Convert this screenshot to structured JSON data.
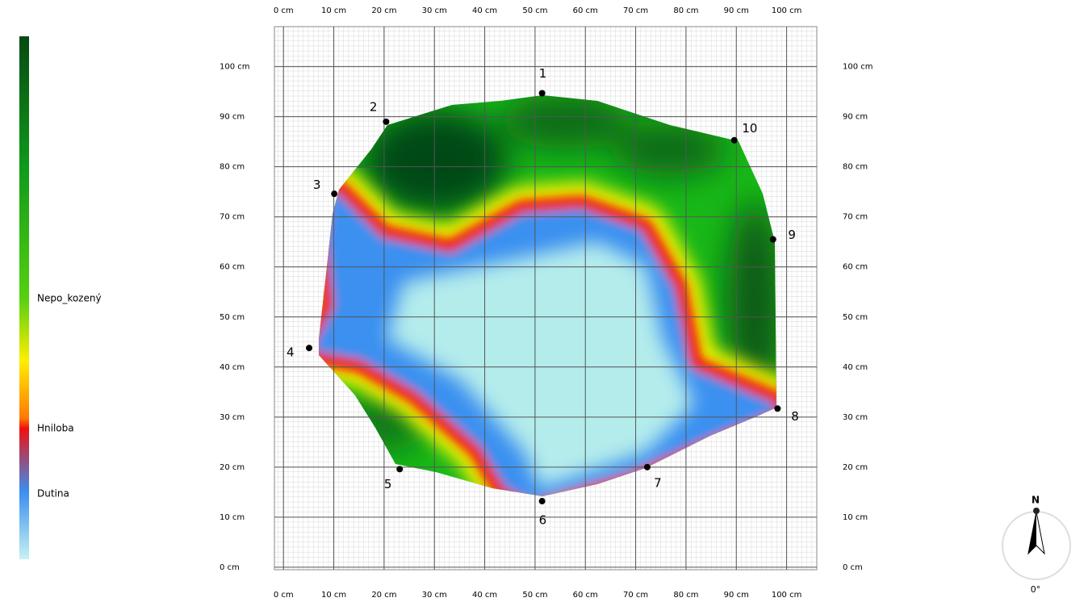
{
  "chart_data": {
    "type": "scatter",
    "x": [
      51.4,
      20.4,
      10.1,
      5.1,
      23.1,
      51.4,
      72.3,
      98.2,
      97.3,
      89.6
    ],
    "y": [
      94.7,
      89.0,
      74.6,
      43.8,
      19.6,
      13.2,
      20.0,
      31.7,
      65.5,
      85.3
    ],
    "point_labels": [
      "1",
      "2",
      "3",
      "4",
      "5",
      "6",
      "7",
      "8",
      "9",
      "10"
    ],
    "color": "#000000",
    "xlim": [
      -1.8,
      106
    ],
    "ylim": [
      -0.5,
      108
    ],
    "xticks": [
      {
        "value": 0,
        "label": "0 cm"
      },
      {
        "value": 10,
        "label": "10 cm"
      },
      {
        "value": 20,
        "label": "20 cm"
      },
      {
        "value": 30,
        "label": "30 cm"
      },
      {
        "value": 40,
        "label": "40 cm"
      },
      {
        "value": 50,
        "label": "50 cm"
      },
      {
        "value": 60,
        "label": "60 cm"
      },
      {
        "value": 70,
        "label": "70 cm"
      },
      {
        "value": 80,
        "label": "80 cm"
      },
      {
        "value": 90,
        "label": "90 cm"
      },
      {
        "value": 100,
        "label": "100 cm"
      }
    ],
    "yticks": [
      {
        "value": 0,
        "label": "0 cm"
      },
      {
        "value": 10,
        "label": "10 cm"
      },
      {
        "value": 20,
        "label": "20 cm"
      },
      {
        "value": 30,
        "label": "30 cm"
      },
      {
        "value": 40,
        "label": "40 cm"
      },
      {
        "value": 50,
        "label": "50 cm"
      },
      {
        "value": 60,
        "label": "60 cm"
      },
      {
        "value": 70,
        "label": "70 cm"
      },
      {
        "value": 80,
        "label": "80 cm"
      },
      {
        "value": 90,
        "label": "90 cm"
      },
      {
        "value": 100,
        "label": "100 cm"
      }
    ],
    "grid": true
  },
  "legend": {
    "labels": [
      "Nepo_kozený",
      "Hniloba",
      "Dutina"
    ]
  },
  "compass": {
    "north": "N",
    "angle": "0°"
  }
}
